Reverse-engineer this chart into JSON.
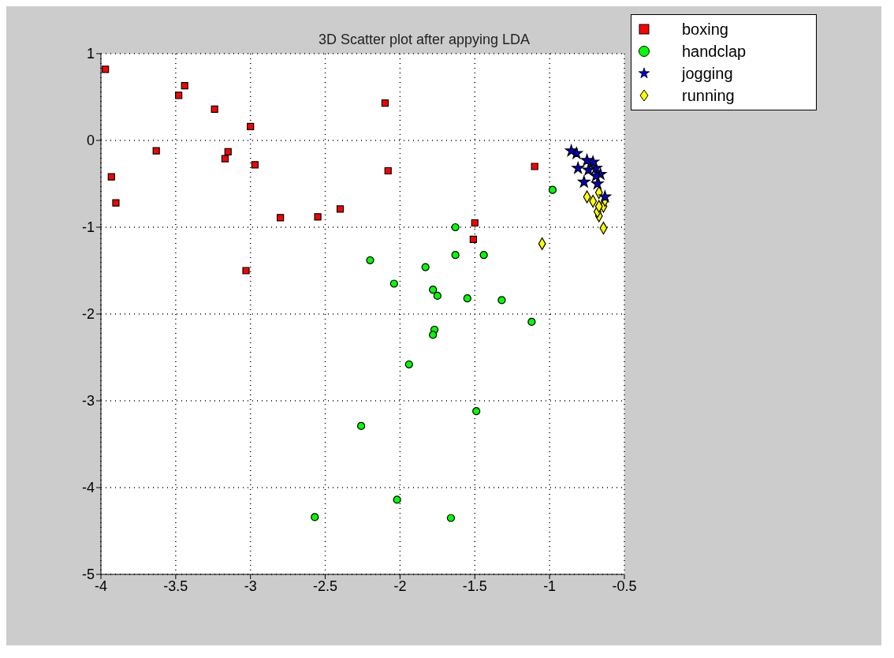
{
  "chart_data": {
    "type": "scatter",
    "title": "3D Scatter plot after appying LDA",
    "xlim": [
      -4,
      -0.5
    ],
    "xticks": [
      -4,
      -3.5,
      -3,
      -2.5,
      -2,
      -1.5,
      -1,
      -0.5
    ],
    "ylim": [
      -5,
      1
    ],
    "yticks": [
      -5,
      -4,
      -3,
      -2,
      -1,
      0,
      1
    ],
    "grid": true,
    "legend": "top right",
    "series": [
      {
        "name": "boxing",
        "color": "#ff0000",
        "marker": "square",
        "x": [
          -3.97,
          -3.93,
          -3.9,
          -3.63,
          -3.48,
          -3.44,
          -3.24,
          -3.17,
          -3.15,
          -3.0,
          -2.97,
          -3.03,
          -2.8,
          -2.55,
          -2.4,
          -2.1,
          -2.08,
          -1.1,
          -1.5,
          -1.51
        ],
        "values": [
          0.82,
          -0.42,
          -0.72,
          -0.12,
          0.52,
          0.63,
          0.36,
          -0.21,
          -0.13,
          0.16,
          -0.28,
          -1.5,
          -0.89,
          -0.88,
          -0.79,
          0.43,
          -0.35,
          -0.3,
          -0.95,
          -1.14
        ]
      },
      {
        "name": "handclap",
        "color": "#00ff00",
        "marker": "circle",
        "x": [
          -0.98,
          -1.63,
          -2.2,
          -1.83,
          -1.63,
          -1.44,
          -2.04,
          -1.78,
          -1.75,
          -1.55,
          -1.32,
          -1.12,
          -1.78,
          -1.77,
          -1.94,
          -2.26,
          -1.49,
          -2.02,
          -2.57,
          -1.66
        ],
        "values": [
          -0.57,
          -1.0,
          -1.38,
          -1.46,
          -1.32,
          -1.32,
          -1.65,
          -1.72,
          -1.79,
          -1.82,
          -1.84,
          -2.09,
          -2.24,
          -2.18,
          -2.58,
          -3.29,
          -3.12,
          -4.14,
          -4.34,
          -4.35
        ]
      },
      {
        "name": "jogging",
        "color": "#0000cc",
        "marker": "star",
        "x": [
          -0.855,
          -0.82,
          -0.75,
          -0.71,
          -0.81,
          -0.74,
          -0.69,
          -0.69,
          -0.77,
          -0.66,
          -0.63,
          -0.68
        ],
        "values": [
          -0.12,
          -0.15,
          -0.23,
          -0.25,
          -0.32,
          -0.34,
          -0.32,
          -0.41,
          -0.48,
          -0.39,
          -0.65,
          -0.5
        ]
      },
      {
        "name": "running",
        "color": "#ffff00",
        "marker": "diamond",
        "x": [
          -0.75,
          -0.71,
          -0.67,
          -0.63,
          -0.67,
          -0.64,
          -0.68,
          -0.67,
          -0.64,
          -1.05
        ],
        "values": [
          -0.65,
          -0.7,
          -0.6,
          -0.69,
          -0.76,
          -0.76,
          -0.82,
          -0.87,
          -1.01,
          -1.19
        ]
      }
    ]
  }
}
